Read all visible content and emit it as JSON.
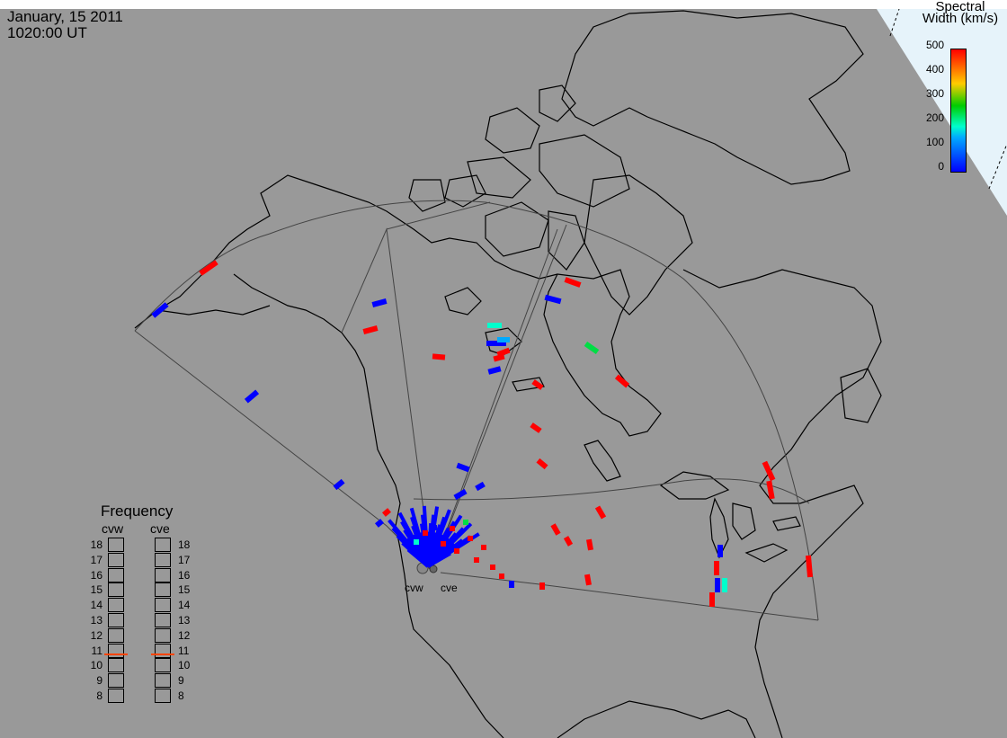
{
  "header": {
    "date": "January, 15 2011",
    "time": "1020:00 UT"
  },
  "colorbar": {
    "title_line1": "Spectral",
    "title_line2": "Width (km/s)",
    "ticks": [
      "500",
      "400",
      "300",
      "200",
      "100",
      "0"
    ],
    "colors": [
      "#0000ff",
      "#00aaff",
      "#00ffcc",
      "#00cc00",
      "#ffcc00",
      "#ff0000"
    ]
  },
  "frequency": {
    "title": "Frequency",
    "radars": [
      {
        "name": "cvw",
        "value": 10.8
      },
      {
        "name": "cve",
        "value": 10.8
      }
    ],
    "levels": [
      "18",
      "17",
      "16",
      "15",
      "14",
      "13",
      "12",
      "11",
      "10",
      "9",
      "8"
    ],
    "marker_color": "#ff4400"
  },
  "radar_sites": [
    {
      "name": "cvw"
    },
    {
      "name": "cve"
    }
  ],
  "colors": {
    "background": "#999999",
    "coast": "#000000",
    "fov": "#555555"
  }
}
